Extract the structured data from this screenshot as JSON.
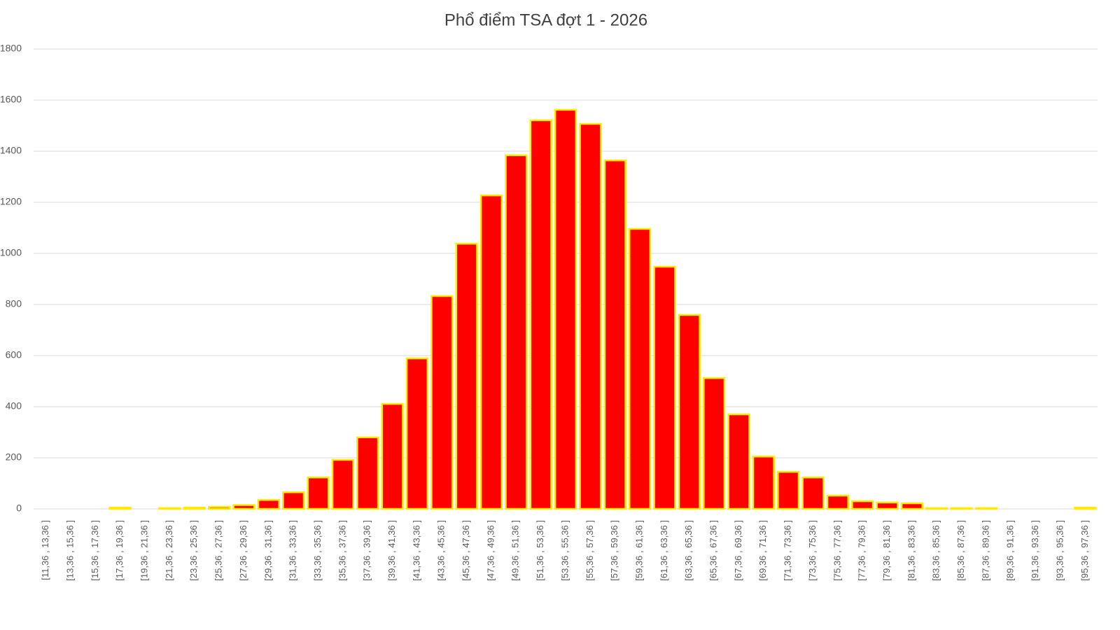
{
  "chart_data": {
    "type": "bar",
    "title": "Phổ điểm TSA đợt 1 - 2026",
    "categories": [
      "[11,36 , 13,36 ]",
      "[13,36 , 15,36 ]",
      "[15,36 , 17,36 ]",
      "[17,36 , 19,36 ]",
      "[19,36 , 21,36 ]",
      "[21,36 , 23,36 ]",
      "[23,36 , 25,36 ]",
      "[25,36 , 27,36 ]",
      "[27,36 , 29,36 ]",
      "[29,36 , 31,36 ]",
      "[31,36 , 33,36 ]",
      "[33,36 , 35,36 ]",
      "[35,36 , 37,36 ]",
      "[37,36 , 39,36 ]",
      "[39,36 , 41,36 ]",
      "[41,36 , 43,36 ]",
      "[43,36 , 45,36 ]",
      "[45,36 , 47,36 ]",
      "[47,36 , 49,36 ]",
      "[49,36 , 51,36 ]",
      "[51,36 , 53,36 ]",
      "[53,36 , 55,36 ]",
      "[55,36 , 57,36 ]",
      "[57,36 , 59,36 ]",
      "[59,36 , 61,36 ]",
      "[61,36 , 63,36 ]",
      "[63,36 , 65,36 ]",
      "[65,36 , 67,36 ]",
      "[67,36 , 69,36 ]",
      "[69,36 , 71,36 ]",
      "[71,36 , 73,36 ]",
      "[73,36 , 75,36 ]",
      "[75,36 , 77,36 ]",
      "[77,36 , 79,36 ]",
      "[79,36 , 81,36 ]",
      "[81,36 , 83,36 ]",
      "[83,36 , 85,36 ]",
      "[85,36 , 87,36 ]",
      "[87,36 , 89,36 ]",
      "[89,36 , 91,36 ]",
      "[91,36 , 93,36 ]",
      "[93,36 , 95,36 ]",
      "[95,36 , 97,36 ]"
    ],
    "values": [
      0,
      0,
      0,
      5,
      0,
      3,
      5,
      8,
      15,
      35,
      65,
      123,
      192,
      280,
      411,
      589,
      833,
      1038,
      1227,
      1384,
      1521,
      1562,
      1507,
      1364,
      1096,
      948,
      759,
      512,
      370,
      205,
      145,
      123,
      52,
      30,
      25,
      22,
      3,
      3,
      3,
      0,
      0,
      0,
      5
    ],
    "color": "#ff0000",
    "edge_color": "#ffea00",
    "ylim": [
      0,
      1800
    ],
    "yticks": [
      0,
      200,
      400,
      600,
      800,
      1000,
      1200,
      1400,
      1600,
      1800
    ],
    "grid": true
  }
}
